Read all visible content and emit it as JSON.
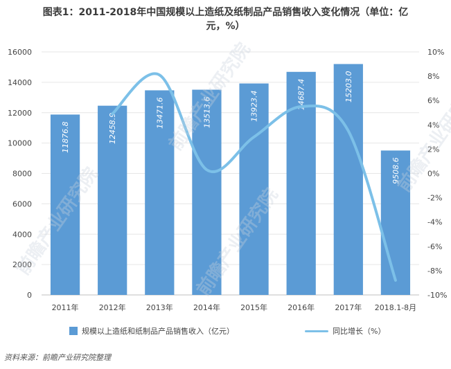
{
  "title_line1": "图表1：2011-2018年中国规模以上造纸及纸制品产品销售收入变化情况（单位：亿",
  "title_line2": "元，%）",
  "source": "资料来源：前瞻产业研究院整理",
  "watermark_text": "前瞻产业研究院",
  "legend": {
    "bar": "规模以上造纸和纸制品产品销售收入（亿元）",
    "line": "同比增长（%）"
  },
  "colors": {
    "bar": "#5b9bd5",
    "line": "#7cc0e8",
    "grid": "#e6e6e6"
  },
  "chart_data": {
    "type": "bar",
    "categories": [
      "2011年",
      "2012年",
      "2013年",
      "2014年",
      "2015年",
      "2016年",
      "2017年",
      "2018.1-8月"
    ],
    "series": [
      {
        "name": "规模以上造纸和纸制品产品销售收入（亿元）",
        "type": "bar",
        "axis": "left",
        "values": [
          11876.8,
          12458.9,
          13471.6,
          13513.6,
          13923.4,
          14687.4,
          15203.0,
          9508.6
        ],
        "labels": [
          "11876.8",
          "12458.9",
          "13471.6",
          "13513.6",
          "13923.4",
          "14687.4",
          "15203.0",
          "9508.6"
        ]
      },
      {
        "name": "同比增长（%）",
        "type": "line",
        "axis": "right",
        "values": [
          null,
          4.9,
          8.1,
          0.3,
          3.0,
          5.5,
          3.5,
          -8.8
        ]
      }
    ],
    "y_left": {
      "min": 0,
      "max": 16000,
      "ticks": [
        "0",
        "2000",
        "4000",
        "6000",
        "8000",
        "10000",
        "12000",
        "14000",
        "16000"
      ]
    },
    "y_right": {
      "min": -10,
      "max": 10,
      "ticks": [
        "-10%",
        "-8%",
        "-6%",
        "-4%",
        "-2%",
        "0%",
        "2%",
        "4%",
        "6%",
        "8%",
        "10%"
      ]
    },
    "grid": true,
    "legend_position": "bottom"
  }
}
